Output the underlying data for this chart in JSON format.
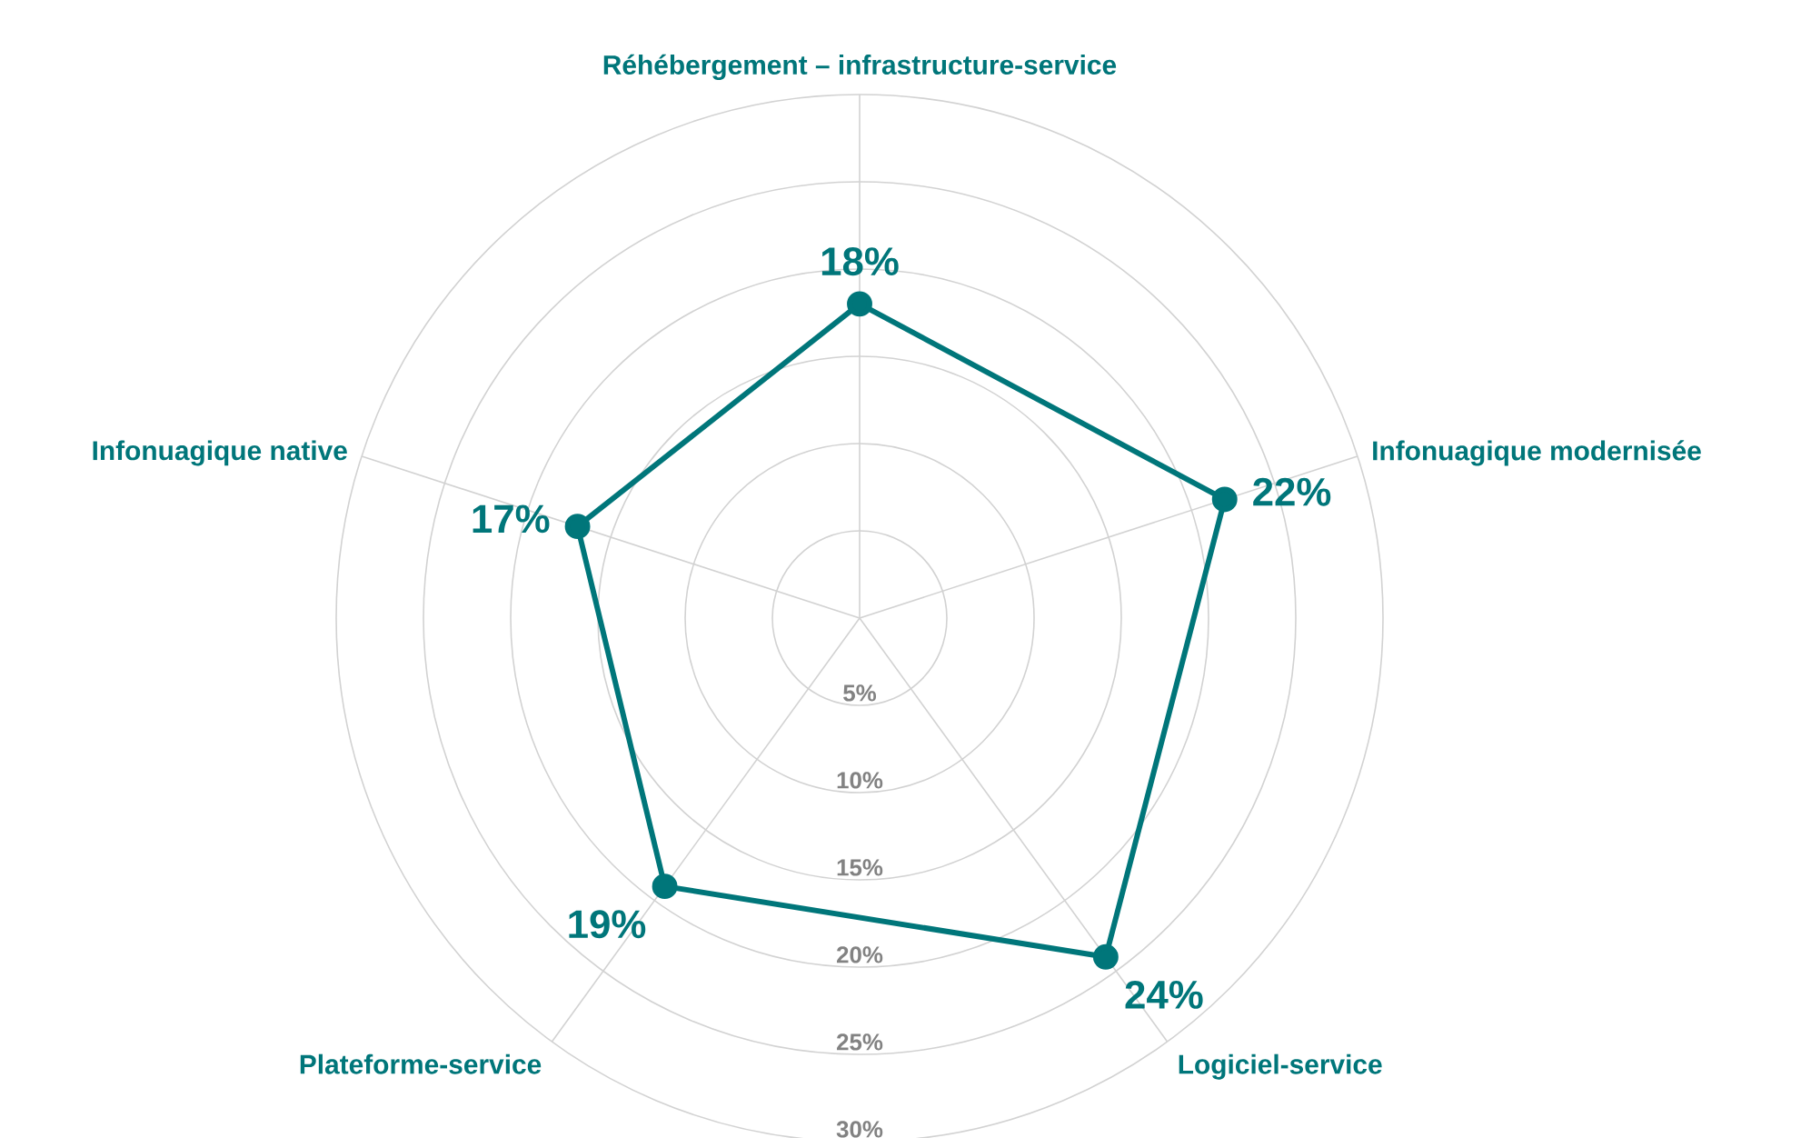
{
  "chart_data": {
    "type": "radar",
    "categories": [
      "Réhébergement – infrastructure-service",
      "Infonuagique modernisée",
      "Logiciel-service",
      "Plateforme-service",
      "Infonuagique native"
    ],
    "series": [
      {
        "color": "#00767a",
        "values": [
          18,
          22,
          24,
          19,
          17
        ],
        "value_labels": [
          "18%",
          "22%",
          "24%",
          "19%",
          "17%"
        ]
      }
    ],
    "ylim": [
      0,
      30
    ],
    "yticks": [
      {
        "value": 5,
        "label": "5%"
      },
      {
        "value": 10,
        "label": "10%"
      },
      {
        "value": 15,
        "label": "15%"
      },
      {
        "value": 20,
        "label": "20%"
      },
      {
        "value": 25,
        "label": "25%"
      },
      {
        "value": 30,
        "label": "30%"
      }
    ],
    "grid": true,
    "marker": "circle",
    "line_style": "solid"
  }
}
